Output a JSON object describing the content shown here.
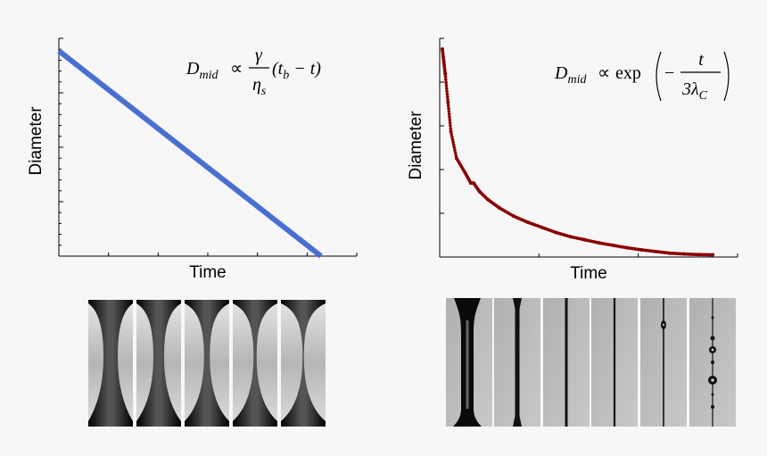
{
  "charts": {
    "left": {
      "xlabel": "Time",
      "ylabel": "Diameter",
      "formula": {
        "lhs": "D",
        "lhs_sub": "mid",
        "relation": "∝",
        "numerator": "γ",
        "denominator": "η",
        "denominator_sub": "s",
        "tail_open": "(t",
        "tail_sub": "b",
        "tail_close": " − t)"
      }
    },
    "right": {
      "xlabel": "Time",
      "ylabel": "Diameter",
      "formula": {
        "lhs": "D",
        "lhs_sub": "mid",
        "relation": "∝",
        "func": "exp",
        "sign": "−",
        "numerator": "t",
        "denominator": "3λ",
        "denominator_sub": "C"
      }
    }
  },
  "chart_data": [
    {
      "type": "line",
      "xlabel": "Time",
      "ylabel": "Diameter",
      "xlim": [
        0,
        1
      ],
      "ylim": [
        0,
        1
      ],
      "grid": false,
      "series": [
        {
          "color": "#4a6fd1",
          "x": [
            0.0,
            0.88
          ],
          "y": [
            1.0,
            0.0
          ]
        }
      ]
    },
    {
      "type": "scatter",
      "xlabel": "Time",
      "ylabel": "Diameter",
      "xlim": [
        0,
        1
      ],
      "ylim": [
        0,
        1
      ],
      "grid": false,
      "series": [
        {
          "color": "#8b0000",
          "x": [
            0.0,
            0.005,
            0.01,
            0.02,
            0.03,
            0.05,
            0.08,
            0.1,
            0.11,
            0.13,
            0.16,
            0.2,
            0.25,
            0.3,
            0.35,
            0.4,
            0.45,
            0.5,
            0.55,
            0.6,
            0.65,
            0.7,
            0.75,
            0.8,
            0.85,
            0.9,
            0.95
          ],
          "y": [
            1.0,
            0.94,
            0.88,
            0.74,
            0.6,
            0.47,
            0.4,
            0.35,
            0.35,
            0.31,
            0.27,
            0.23,
            0.19,
            0.16,
            0.135,
            0.11,
            0.09,
            0.075,
            0.06,
            0.048,
            0.036,
            0.026,
            0.018,
            0.01,
            0.006,
            0.003,
            0.002
          ]
        }
      ]
    }
  ],
  "images": {
    "shear_thinning_strips": [
      "frame-1",
      "frame-2",
      "frame-3",
      "frame-4",
      "frame-5"
    ],
    "elastic_strips": [
      "frame-1",
      "frame-2",
      "frame-3",
      "frame-4",
      "frame-5",
      "frame-6"
    ]
  }
}
